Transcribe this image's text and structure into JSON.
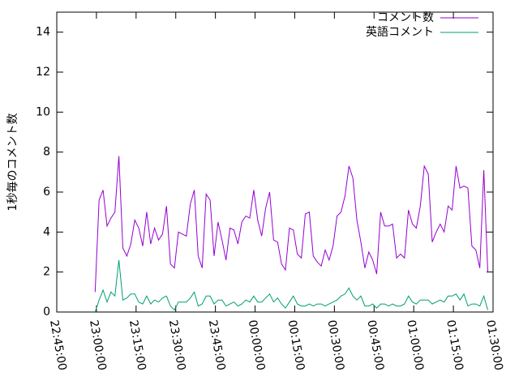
{
  "chart_data": {
    "type": "line",
    "ylabel": "1秒毎のコメント数",
    "x": [
      "22:59:30",
      "23:01:00",
      "23:02:30",
      "23:04:00",
      "23:05:30",
      "23:07:00",
      "23:08:30",
      "23:10:00",
      "23:11:30",
      "23:13:00",
      "23:14:30",
      "23:16:00",
      "23:17:30",
      "23:19:00",
      "23:20:30",
      "23:22:00",
      "23:23:30",
      "23:25:00",
      "23:26:30",
      "23:28:00",
      "23:29:30",
      "23:31:00",
      "23:32:30",
      "23:34:00",
      "23:35:30",
      "23:37:00",
      "23:38:30",
      "23:40:00",
      "23:41:30",
      "23:43:00",
      "23:44:30",
      "23:46:00",
      "23:47:30",
      "23:49:00",
      "23:50:30",
      "23:52:00",
      "23:53:30",
      "23:55:00",
      "23:56:30",
      "23:58:00",
      "23:59:30",
      "00:01:00",
      "00:02:30",
      "00:04:00",
      "00:05:30",
      "00:07:00",
      "00:08:30",
      "00:10:00",
      "00:11:30",
      "00:13:00",
      "00:14:30",
      "00:16:00",
      "00:17:30",
      "00:19:00",
      "00:20:30",
      "00:22:00",
      "00:23:30",
      "00:25:00",
      "00:26:30",
      "00:28:00",
      "00:29:30",
      "00:31:00",
      "00:32:30",
      "00:34:00",
      "00:35:30",
      "00:37:00",
      "00:38:30",
      "00:40:00",
      "00:41:30",
      "00:43:00",
      "00:44:30",
      "00:46:00",
      "00:47:30",
      "00:49:00",
      "00:50:30",
      "00:52:00",
      "00:53:30",
      "00:55:00",
      "00:56:30",
      "00:58:00",
      "00:59:30",
      "01:01:00",
      "01:02:30",
      "01:04:00",
      "01:05:30",
      "01:07:00",
      "01:08:30",
      "01:10:00",
      "01:11:30",
      "01:13:00",
      "01:14:30",
      "01:16:00",
      "01:17:30",
      "01:19:00",
      "01:20:30",
      "01:22:00",
      "01:23:30",
      "01:25:00",
      "01:26:30",
      "01:28:00"
    ],
    "series": [
      {
        "name": "コメント数",
        "color": "#9400d3",
        "values": [
          1.0,
          5.6,
          6.1,
          4.3,
          4.7,
          5.0,
          7.8,
          3.2,
          2.8,
          3.4,
          4.6,
          4.2,
          3.3,
          5.0,
          3.4,
          4.2,
          3.6,
          3.9,
          5.3,
          2.4,
          2.2,
          4.0,
          3.9,
          3.8,
          5.4,
          6.1,
          2.8,
          2.2,
          5.9,
          5.6,
          2.8,
          4.5,
          3.6,
          2.6,
          4.2,
          4.1,
          3.4,
          4.5,
          4.8,
          4.7,
          6.1,
          4.6,
          3.8,
          5.2,
          6.0,
          3.6,
          3.5,
          2.4,
          2.1,
          4.2,
          4.1,
          2.9,
          2.7,
          4.9,
          5.0,
          2.8,
          2.5,
          2.3,
          3.1,
          2.6,
          3.3,
          4.8,
          5.0,
          5.8,
          7.3,
          6.7,
          4.6,
          3.5,
          2.2,
          3.0,
          2.6,
          1.9,
          5.0,
          4.3,
          4.3,
          4.4,
          2.7,
          2.9,
          2.7,
          5.1,
          4.4,
          4.2,
          5.3,
          7.3,
          6.9,
          3.5,
          4.0,
          4.4,
          4.0,
          5.3,
          5.1,
          7.3,
          6.2,
          6.3,
          6.2,
          3.3,
          3.1,
          2.2,
          7.1,
          2.0
        ]
      },
      {
        "name": "英語コメント",
        "color": "#009e73",
        "values": [
          0.0,
          0.6,
          1.1,
          0.5,
          1.0,
          0.8,
          2.6,
          0.6,
          0.7,
          0.9,
          0.9,
          0.5,
          0.4,
          0.8,
          0.4,
          0.6,
          0.5,
          0.7,
          0.8,
          0.3,
          0.1,
          0.5,
          0.5,
          0.5,
          0.7,
          1.0,
          0.3,
          0.4,
          0.8,
          0.8,
          0.4,
          0.6,
          0.6,
          0.3,
          0.4,
          0.5,
          0.3,
          0.4,
          0.6,
          0.5,
          0.8,
          0.5,
          0.5,
          0.7,
          0.9,
          0.5,
          0.7,
          0.4,
          0.2,
          0.5,
          0.8,
          0.4,
          0.3,
          0.3,
          0.4,
          0.3,
          0.4,
          0.4,
          0.3,
          0.4,
          0.5,
          0.6,
          0.8,
          0.9,
          1.2,
          0.8,
          0.6,
          0.8,
          0.3,
          0.3,
          0.4,
          0.2,
          0.4,
          0.4,
          0.3,
          0.4,
          0.3,
          0.3,
          0.4,
          0.8,
          0.5,
          0.4,
          0.6,
          0.6,
          0.6,
          0.4,
          0.5,
          0.6,
          0.5,
          0.8,
          0.8,
          0.9,
          0.6,
          0.9,
          0.3,
          0.4,
          0.4,
          0.3,
          0.8,
          0.1
        ]
      }
    ],
    "xlim": [
      "22:45:00",
      "01:30:00"
    ],
    "xticks": [
      "22:45:00",
      "23:00:00",
      "23:15:00",
      "23:30:00",
      "23:45:00",
      "00:00:00",
      "00:15:00",
      "00:30:00",
      "00:45:00",
      "01:00:00",
      "01:15:00",
      "01:30:00"
    ],
    "ylim": [
      0,
      15
    ],
    "yticks": [
      0,
      2,
      4,
      6,
      8,
      10,
      12,
      14
    ],
    "legend": "upper-right"
  }
}
